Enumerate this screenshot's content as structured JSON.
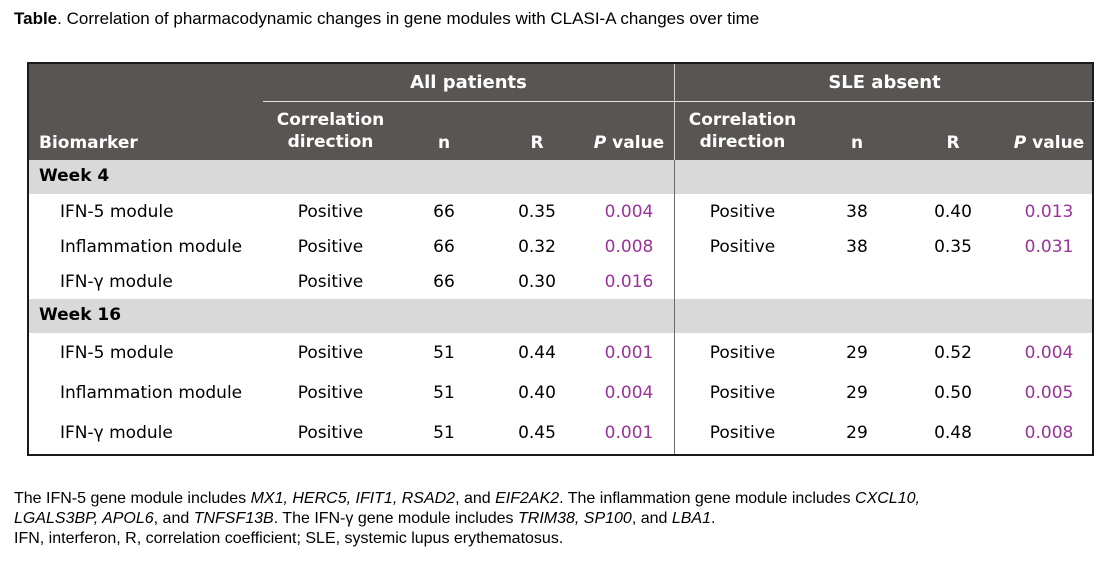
{
  "caption": {
    "label": "Table",
    "text": ". Correlation of pharmacodynamic changes in gene modules with CLASI-A changes over time"
  },
  "table": {
    "groups": [
      "All patients",
      "SLE absent"
    ],
    "headers": {
      "biomarker": "Biomarker",
      "direction_1": "Correlation",
      "direction_2": "direction",
      "n": "n",
      "r": "R",
      "p_italic": "P",
      "p_rest": " value"
    },
    "sections": [
      {
        "title": "Week 4",
        "rows": [
          {
            "name": "IFN-5 module",
            "a": [
              "Positive",
              "66",
              "0.35",
              "0.004"
            ],
            "b": [
              "Positive",
              "38",
              "0.40",
              "0.013"
            ]
          },
          {
            "name": "Inflammation module",
            "a": [
              "Positive",
              "66",
              "0.32",
              "0.008"
            ],
            "b": [
              "Positive",
              "38",
              "0.35",
              "0.031"
            ]
          },
          {
            "name": "IFN-γ module",
            "a": [
              "Positive",
              "66",
              "0.30",
              "0.016"
            ],
            "b": [
              "",
              "",
              "",
              ""
            ]
          }
        ]
      },
      {
        "title": "Week 16",
        "rows": [
          {
            "name": "IFN-5 module",
            "a": [
              "Positive",
              "51",
              "0.44",
              "0.001"
            ],
            "b": [
              "Positive",
              "29",
              "0.52",
              "0.004"
            ]
          },
          {
            "name": "Inflammation module",
            "a": [
              "Positive",
              "51",
              "0.40",
              "0.004"
            ],
            "b": [
              "Positive",
              "29",
              "0.50",
              "0.005"
            ]
          },
          {
            "name": "IFN-γ module",
            "a": [
              "Positive",
              "51",
              "0.45",
              "0.001"
            ],
            "b": [
              "Positive",
              "29",
              "0.48",
              "0.008"
            ]
          }
        ]
      }
    ]
  },
  "footnote": {
    "l1_a": "The IFN-5 gene module includes ",
    "l1_g1": "MX1, HERC5, IFIT1, RSAD2",
    "l1_b": ", and ",
    "l1_g2": "EIF2AK2",
    "l1_c": ". The inflammation gene module includes ",
    "l1_g3": "CXCL10,",
    "l2_g1": "LGALS3BP, APOL6",
    "l2_a": ", and ",
    "l2_g2": "TNFSF13B",
    "l2_b": ". The IFN-γ gene module includes ",
    "l2_g3": "TRIM38, SP100",
    "l2_c": ", and ",
    "l2_g4": "LBA1",
    "l2_d": ".",
    "l3": "IFN, interferon, R, correlation coefficient; SLE, systemic lupus erythematosus."
  },
  "colors": {
    "header_bg": "#585553",
    "section_bg": "#d9d9d9",
    "p_value": "#993399"
  }
}
